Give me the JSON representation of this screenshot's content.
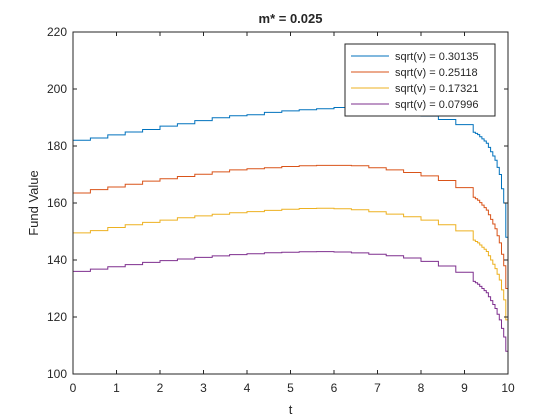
{
  "chart_data": {
    "type": "line",
    "title": "m* = 0.025",
    "xlabel": "t",
    "ylabel": "Fund Value",
    "xlim": [
      0,
      10
    ],
    "ylim": [
      100,
      220
    ],
    "xticks": [
      0,
      1,
      2,
      3,
      4,
      5,
      6,
      7,
      8,
      9,
      10
    ],
    "yticks": [
      100,
      120,
      140,
      160,
      180,
      200,
      220
    ],
    "grid": false,
    "legend_position": "top-right",
    "step": 0.4,
    "series": [
      {
        "name": "sqrt(v) = 0.30135",
        "color": "#0072BD",
        "points": [
          [
            0,
            182
          ],
          [
            0.5,
            183
          ],
          [
            1,
            184.5
          ],
          [
            1.5,
            185.5
          ],
          [
            2,
            187
          ],
          [
            2.5,
            188
          ],
          [
            3,
            189.5
          ],
          [
            3.5,
            190.5
          ],
          [
            4,
            191
          ],
          [
            4.5,
            192
          ],
          [
            5,
            192.5
          ],
          [
            5.5,
            193
          ],
          [
            6,
            193.5
          ],
          [
            6.5,
            193.5
          ],
          [
            7,
            193
          ],
          [
            7.5,
            192
          ],
          [
            8,
            190.5
          ],
          [
            8.5,
            189
          ],
          [
            9,
            186.5
          ],
          [
            9.3,
            184
          ],
          [
            9.5,
            181
          ],
          [
            9.7,
            175
          ],
          [
            9.8,
            170
          ],
          [
            9.9,
            160
          ],
          [
            9.95,
            148
          ],
          [
            10,
            101
          ]
        ]
      },
      {
        "name": "sqrt(v) = 0.25118",
        "color": "#D95319",
        "points": [
          [
            0,
            163.5
          ],
          [
            0.5,
            165
          ],
          [
            1,
            166
          ],
          [
            1.5,
            167.5
          ],
          [
            2,
            168.5
          ],
          [
            2.5,
            169.5
          ],
          [
            3,
            170.5
          ],
          [
            3.5,
            171.5
          ],
          [
            4,
            172
          ],
          [
            4.5,
            172.5
          ],
          [
            5,
            173
          ],
          [
            5.5,
            173.2
          ],
          [
            6,
            173.2
          ],
          [
            6.5,
            173
          ],
          [
            7,
            172
          ],
          [
            7.5,
            171
          ],
          [
            8,
            169.5
          ],
          [
            8.5,
            167.5
          ],
          [
            9,
            164
          ],
          [
            9.3,
            161
          ],
          [
            9.5,
            157.5
          ],
          [
            9.7,
            151
          ],
          [
            9.8,
            146
          ],
          [
            9.9,
            138
          ],
          [
            9.95,
            130
          ],
          [
            10,
            101
          ]
        ]
      },
      {
        "name": "sqrt(v) = 0.17321",
        "color": "#EDB120",
        "points": [
          [
            0,
            149.5
          ],
          [
            0.5,
            150.5
          ],
          [
            1,
            152
          ],
          [
            1.5,
            153
          ],
          [
            2,
            154
          ],
          [
            2.5,
            155
          ],
          [
            3,
            155.8
          ],
          [
            3.5,
            156.5
          ],
          [
            4,
            157
          ],
          [
            4.5,
            157.5
          ],
          [
            5,
            158
          ],
          [
            5.5,
            158.2
          ],
          [
            6,
            158
          ],
          [
            6.5,
            157.5
          ],
          [
            7,
            156.5
          ],
          [
            7.5,
            155.5
          ],
          [
            8,
            154
          ],
          [
            8.5,
            152
          ],
          [
            9,
            149
          ],
          [
            9.3,
            146
          ],
          [
            9.5,
            143
          ],
          [
            9.7,
            137
          ],
          [
            9.8,
            133
          ],
          [
            9.9,
            126
          ],
          [
            9.95,
            119
          ],
          [
            10,
            101
          ]
        ]
      },
      {
        "name": "sqrt(v) = 0.07996",
        "color": "#7E2F8E",
        "points": [
          [
            0,
            136
          ],
          [
            0.5,
            137
          ],
          [
            1,
            138
          ],
          [
            1.5,
            139
          ],
          [
            2,
            139.8
          ],
          [
            2.5,
            140.5
          ],
          [
            3,
            141.2
          ],
          [
            3.5,
            141.8
          ],
          [
            4,
            142.2
          ],
          [
            4.5,
            142.6
          ],
          [
            5,
            142.8
          ],
          [
            5.5,
            143
          ],
          [
            6,
            142.8
          ],
          [
            6.5,
            142.4
          ],
          [
            7,
            141.8
          ],
          [
            7.5,
            141
          ],
          [
            8,
            139.5
          ],
          [
            8.5,
            137.5
          ],
          [
            9,
            134.5
          ],
          [
            9.3,
            131.5
          ],
          [
            9.5,
            128.5
          ],
          [
            9.7,
            123
          ],
          [
            9.8,
            119
          ],
          [
            9.9,
            113
          ],
          [
            9.95,
            108
          ],
          [
            10,
            100.5
          ]
        ]
      }
    ]
  }
}
